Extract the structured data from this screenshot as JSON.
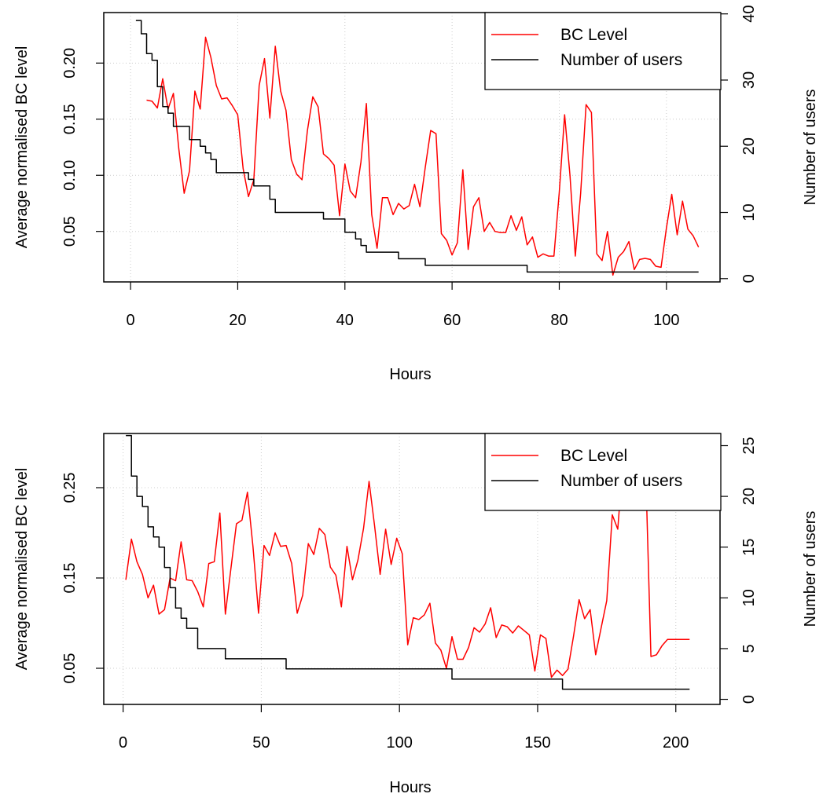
{
  "colors": {
    "bc": "#ff0000",
    "users": "#000000",
    "grid": "#cccccc"
  },
  "chart_data": [
    {
      "type": "line",
      "title": "",
      "xlabel": "Hours",
      "ylabel": "Average normalised BC level",
      "y2label": "Number of users",
      "grid": true,
      "legend_position": "top-right",
      "legend": [
        "BC Level",
        "Number of users"
      ],
      "xlim": [
        -5,
        110
      ],
      "ylim": [
        0.005,
        0.245
      ],
      "y2lim": [
        -0.5,
        40.2
      ],
      "x_ticks": [
        0,
        20,
        40,
        60,
        80,
        100
      ],
      "y_ticks": [
        0.05,
        0.1,
        0.15,
        0.2
      ],
      "y_tick_labels": [
        "0.05",
        "0.10",
        "0.15",
        "0.20"
      ],
      "y2_ticks": [
        0,
        10,
        20,
        30,
        40
      ],
      "series": [
        {
          "name": "BC Level",
          "axis": "left",
          "color": "#ff0000",
          "x": [
            3,
            4,
            5,
            6,
            7,
            8,
            9,
            10,
            11,
            12,
            13,
            14,
            15,
            16,
            17,
            18,
            19,
            20,
            21,
            22,
            23,
            24,
            25,
            26,
            27,
            28,
            29,
            30,
            31,
            32,
            33,
            34,
            35,
            36,
            37,
            38,
            39,
            40,
            41,
            42,
            43,
            44,
            45,
            46,
            47,
            48,
            49,
            50,
            51,
            52,
            53,
            54,
            55,
            56,
            57,
            58,
            59,
            60,
            61,
            62,
            63,
            64,
            65,
            66,
            67,
            68,
            69,
            70,
            71,
            72,
            73,
            74,
            75,
            76,
            77,
            78,
            79,
            80,
            81,
            82,
            83,
            84,
            85,
            86,
            87,
            88,
            89,
            90,
            91,
            92,
            93,
            94,
            95,
            96,
            97,
            98,
            99,
            100,
            101,
            102,
            103,
            104,
            105,
            106
          ],
          "y": [
            0.167,
            0.166,
            0.16,
            0.186,
            0.159,
            0.173,
            0.124,
            0.084,
            0.104,
            0.175,
            0.159,
            0.223,
            0.205,
            0.18,
            0.168,
            0.169,
            0.162,
            0.154,
            0.106,
            0.081,
            0.096,
            0.18,
            0.204,
            0.151,
            0.215,
            0.175,
            0.158,
            0.114,
            0.101,
            0.096,
            0.14,
            0.17,
            0.161,
            0.119,
            0.115,
            0.109,
            0.064,
            0.11,
            0.086,
            0.08,
            0.112,
            0.164,
            0.065,
            0.035,
            0.08,
            0.08,
            0.065,
            0.075,
            0.07,
            0.073,
            0.092,
            0.072,
            0.107,
            0.14,
            0.137,
            0.048,
            0.042,
            0.029,
            0.04,
            0.105,
            0.034,
            0.072,
            0.08,
            0.05,
            0.058,
            0.05,
            0.049,
            0.049,
            0.064,
            0.051,
            0.063,
            0.038,
            0.045,
            0.027,
            0.03,
            0.028,
            0.028,
            0.085,
            0.154,
            0.1,
            0.028,
            0.084,
            0.163,
            0.156,
            0.03,
            0.024,
            0.05,
            0.011,
            0.027,
            0.032,
            0.041,
            0.016,
            0.025,
            0.026,
            0.025,
            0.019,
            0.018,
            0.053,
            0.083,
            0.047,
            0.077,
            0.052,
            0.046,
            0.036
          ]
        },
        {
          "name": "Number of users",
          "axis": "right",
          "color": "#000000",
          "x": [
            1,
            2,
            3,
            4,
            5,
            6,
            7,
            8,
            9,
            10,
            11,
            12,
            13,
            14,
            15,
            16,
            17,
            18,
            19,
            20,
            21,
            22,
            23,
            24,
            25,
            26,
            27,
            28,
            29,
            30,
            31,
            32,
            33,
            34,
            35,
            36,
            37,
            38,
            39,
            40,
            41,
            42,
            43,
            44,
            45,
            46,
            47,
            48,
            49,
            50,
            51,
            52,
            53,
            54,
            55,
            56,
            57,
            58,
            59,
            60,
            61,
            62,
            63,
            64,
            65,
            66,
            67,
            68,
            69,
            70,
            71,
            72,
            73,
            74,
            75,
            80,
            90,
            100,
            106
          ],
          "y": [
            39,
            37,
            34,
            33,
            29,
            26,
            25,
            23,
            23,
            23,
            21,
            21,
            20,
            19,
            18,
            16,
            16,
            16,
            16,
            16,
            16,
            15,
            14,
            14,
            14,
            12,
            10,
            10,
            10,
            10,
            10,
            10,
            10,
            10,
            10,
            9,
            9,
            9,
            9,
            7,
            7,
            6,
            5,
            4,
            4,
            4,
            4,
            4,
            4,
            3,
            3,
            3,
            3,
            3,
            2,
            2,
            2,
            2,
            2,
            2,
            2,
            2,
            2,
            2,
            2,
            2,
            2,
            2,
            2,
            2,
            2,
            2,
            2,
            1,
            1,
            1,
            1,
            1,
            1
          ]
        }
      ]
    },
    {
      "type": "line",
      "title": "",
      "xlabel": "Hours",
      "ylabel": "Average normalised BC level",
      "y2label": "Number of users",
      "grid": true,
      "legend_position": "top-right",
      "legend": [
        "BC Level",
        "Number of users"
      ],
      "xlim": [
        -7,
        216
      ],
      "ylim": [
        0.01,
        0.31
      ],
      "y2lim": [
        -0.5,
        26.2
      ],
      "x_ticks": [
        0,
        50,
        100,
        150,
        200
      ],
      "y_ticks": [
        0.05,
        0.15,
        0.25
      ],
      "y_tick_labels": [
        "0.05",
        "0.15",
        "0.25"
      ],
      "y2_ticks": [
        0,
        5,
        10,
        15,
        20,
        25
      ],
      "series": [
        {
          "name": "BC Level",
          "axis": "left",
          "color": "#ff0000",
          "x": [
            1,
            3,
            5,
            7,
            9,
            11,
            13,
            15,
            17,
            19,
            21,
            23,
            25,
            27,
            29,
            31,
            33,
            35,
            37,
            39,
            41,
            43,
            45,
            47,
            49,
            51,
            53,
            55,
            57,
            59,
            61,
            63,
            65,
            67,
            69,
            71,
            73,
            75,
            77,
            79,
            81,
            83,
            85,
            87,
            89,
            91,
            93,
            95,
            97,
            99,
            101,
            103,
            105,
            107,
            109,
            111,
            113,
            115,
            117,
            119,
            121,
            123,
            125,
            127,
            129,
            131,
            133,
            135,
            137,
            139,
            141,
            143,
            145,
            147,
            149,
            151,
            153,
            155,
            157,
            159,
            161,
            163,
            165,
            167,
            169,
            171,
            173,
            175,
            177,
            179,
            181,
            183,
            185,
            187,
            189,
            191,
            193,
            195,
            197,
            199,
            201,
            203,
            205
          ],
          "y": [
            0.148,
            0.193,
            0.168,
            0.154,
            0.128,
            0.142,
            0.11,
            0.115,
            0.15,
            0.147,
            0.19,
            0.148,
            0.147,
            0.135,
            0.118,
            0.166,
            0.168,
            0.222,
            0.11,
            0.16,
            0.21,
            0.214,
            0.245,
            0.185,
            0.111,
            0.186,
            0.175,
            0.2,
            0.185,
            0.186,
            0.166,
            0.111,
            0.131,
            0.188,
            0.176,
            0.205,
            0.198,
            0.162,
            0.153,
            0.118,
            0.185,
            0.148,
            0.17,
            0.205,
            0.257,
            0.208,
            0.154,
            0.204,
            0.165,
            0.194,
            0.177,
            0.076,
            0.106,
            0.104,
            0.109,
            0.122,
            0.078,
            0.07,
            0.05,
            0.085,
            0.06,
            0.06,
            0.073,
            0.095,
            0.09,
            0.099,
            0.117,
            0.084,
            0.098,
            0.096,
            0.089,
            0.097,
            0.092,
            0.087,
            0.047,
            0.087,
            0.083,
            0.04,
            0.048,
            0.042,
            0.049,
            0.086,
            0.126,
            0.105,
            0.115,
            0.065,
            0.095,
            0.125,
            0.22,
            0.204,
            0.285,
            0.298,
            0.296,
            0.299,
            0.28,
            0.063,
            0.065,
            0.075,
            0.082,
            0.082,
            0.082,
            0.082,
            0.082
          ]
        },
        {
          "name": "Number of users",
          "axis": "right",
          "color": "#000000",
          "x": [
            1,
            3,
            5,
            7,
            9,
            11,
            13,
            15,
            17,
            19,
            21,
            23,
            25,
            27,
            29,
            31,
            33,
            35,
            37,
            39,
            41,
            43,
            45,
            47,
            49,
            51,
            53,
            55,
            57,
            59,
            61,
            63,
            65,
            67,
            69,
            71,
            73,
            75,
            77,
            79,
            81,
            83,
            85,
            87,
            89,
            91,
            93,
            95,
            97,
            99,
            101,
            103,
            105,
            107,
            109,
            111,
            113,
            115,
            117,
            119,
            121,
            123,
            125,
            127,
            129,
            131,
            133,
            135,
            137,
            139,
            141,
            143,
            145,
            147,
            149,
            151,
            153,
            155,
            157,
            159,
            161,
            163,
            165,
            167,
            169,
            171,
            173,
            175,
            177,
            179,
            181,
            183,
            185,
            187,
            189,
            191,
            193,
            195,
            197,
            199,
            201,
            203,
            205
          ],
          "y": [
            26,
            22,
            20,
            19,
            17,
            16,
            15,
            13,
            11,
            9,
            8,
            7,
            7,
            5,
            5,
            5,
            5,
            5,
            4,
            4,
            4,
            4,
            4,
            4,
            4,
            4,
            4,
            4,
            4,
            3,
            3,
            3,
            3,
            3,
            3,
            3,
            3,
            3,
            3,
            3,
            3,
            3,
            3,
            3,
            3,
            3,
            3,
            3,
            3,
            3,
            3,
            3,
            3,
            3,
            3,
            3,
            3,
            3,
            3,
            2,
            2,
            2,
            2,
            2,
            2,
            2,
            2,
            2,
            2,
            2,
            2,
            2,
            2,
            2,
            2,
            2,
            2,
            2,
            2,
            1,
            1,
            1,
            1,
            1,
            1,
            1,
            1,
            1,
            1,
            1,
            1,
            1,
            1,
            1,
            1,
            1,
            1,
            1,
            1,
            1,
            1,
            1,
            1
          ]
        }
      ]
    }
  ]
}
